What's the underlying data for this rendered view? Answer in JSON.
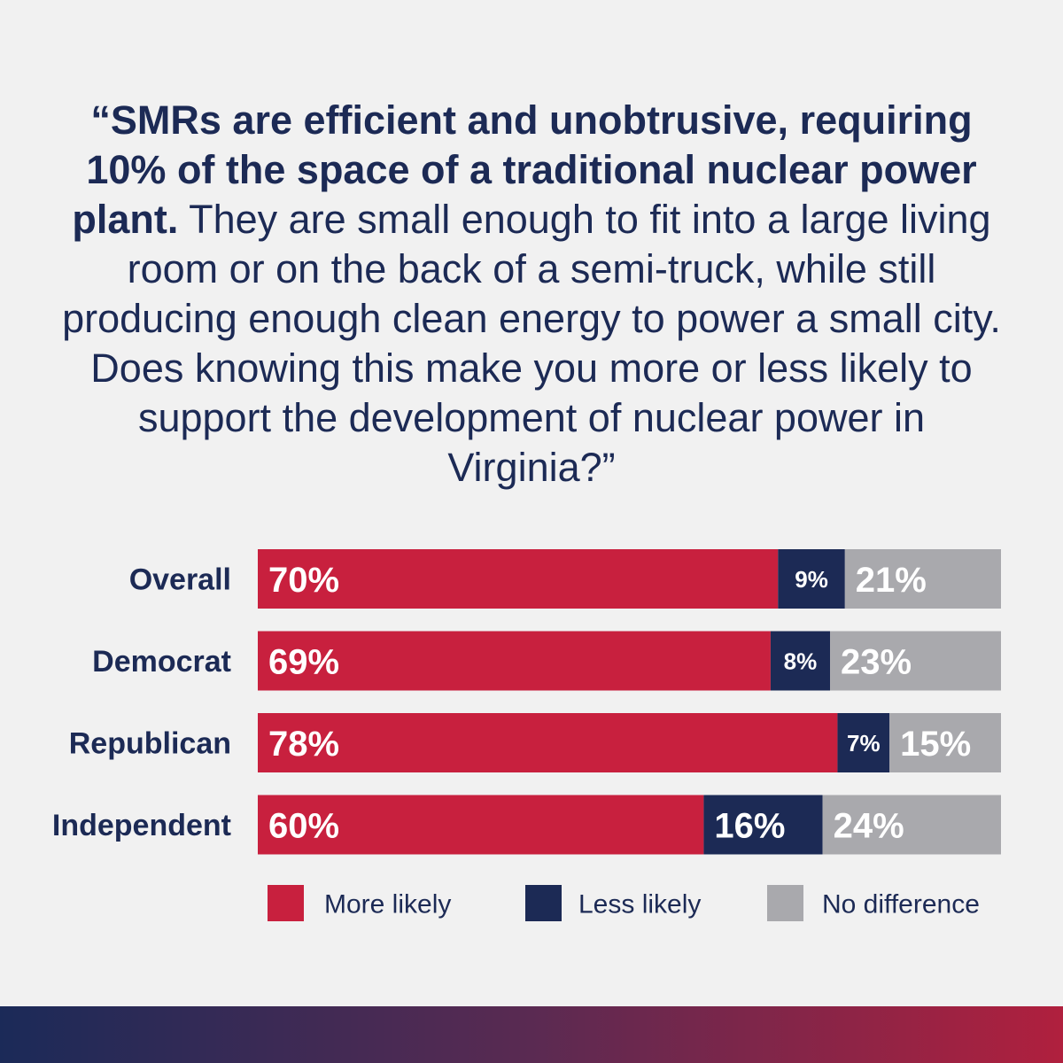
{
  "question": {
    "bold_part": "“SMRs are efficient and unobtrusive, requiring 10% of the space of a traditional nuclear power plant.",
    "regular_part": " They are small enough to fit into a large living room or on the back of a semi-truck, while still producing enough clean energy to power a small city. Does knowing this make you more or less likely to support the development of nuclear power in Virginia?”"
  },
  "chart_data": {
    "type": "bar",
    "orientation": "horizontal",
    "stacked": true,
    "percent_scale": true,
    "categories": [
      "Overall",
      "Democrat",
      "Republican",
      "Independent"
    ],
    "series": [
      {
        "name": "More likely",
        "color": "#c8203e",
        "values": [
          70,
          69,
          78,
          60
        ]
      },
      {
        "name": "Less likely",
        "color": "#1c2a55",
        "values": [
          9,
          8,
          7,
          16
        ]
      },
      {
        "name": "No difference",
        "color": "#a9a9ad",
        "values": [
          21,
          23,
          15,
          24
        ]
      }
    ],
    "value_format": "{v}%",
    "legend": "bottom",
    "grid": false
  },
  "colors": {
    "background": "#f1f1f1",
    "text": "#1c2a55",
    "more_likely": "#c8203e",
    "less_likely": "#1c2a55",
    "no_difference": "#a9a9ad"
  }
}
